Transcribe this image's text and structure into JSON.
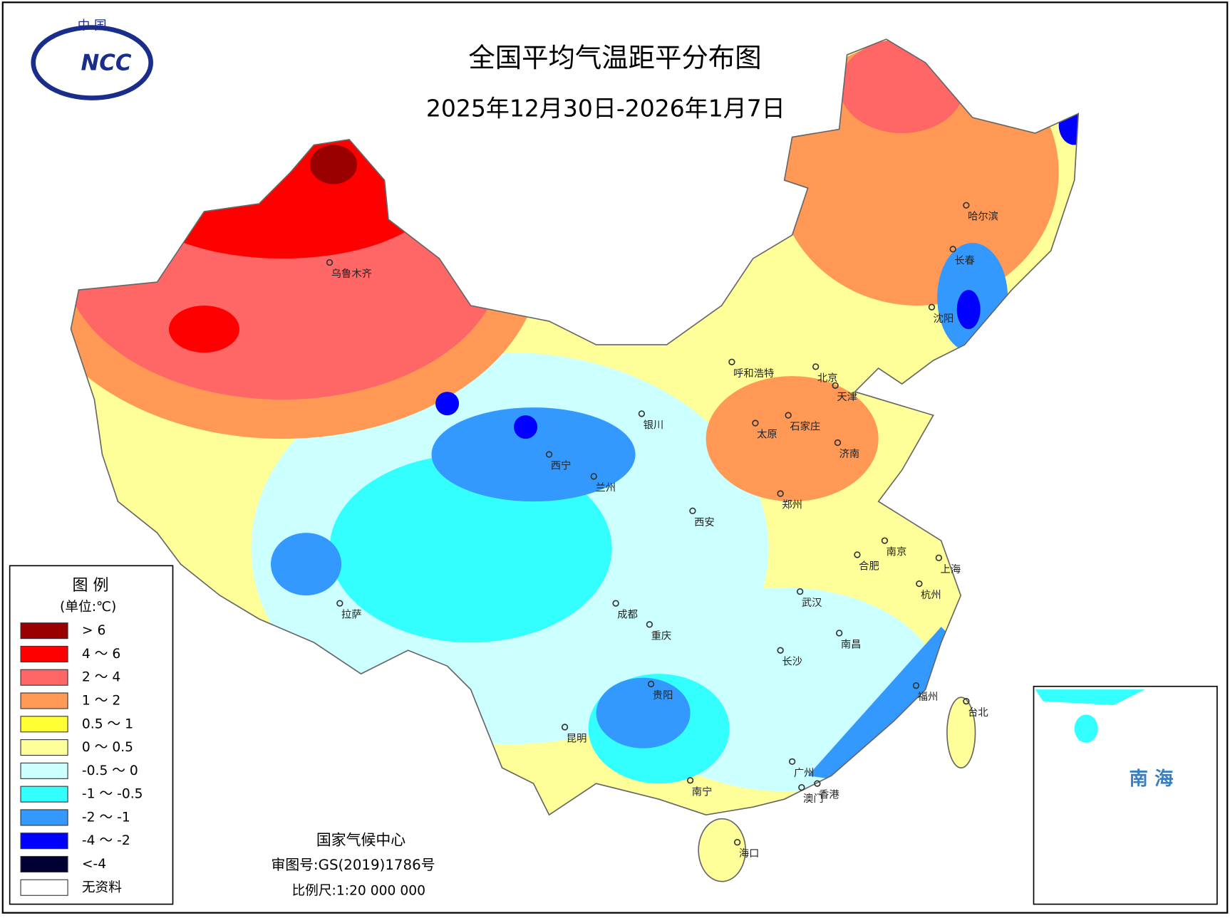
{
  "header": {
    "logo_top": "中 国",
    "logo_text": "NCC",
    "title": "全国平均气温距平分布图",
    "subtitle": "2025年12月30日-2026年1月7日"
  },
  "legend": {
    "title": "图 例",
    "unit": "(单位:℃)",
    "items": [
      {
        "label": "> 6",
        "color": "#9b0000"
      },
      {
        "label": "4 ～ 6",
        "color": "#ff0000"
      },
      {
        "label": "2 ～ 4",
        "color": "#ff6666"
      },
      {
        "label": "1 ～ 2",
        "color": "#ff9955"
      },
      {
        "label": "0.5 ～ 1",
        "color": "#ffff33"
      },
      {
        "label": "0 ～ 0.5",
        "color": "#ffff99"
      },
      {
        "label": "-0.5 ～ 0",
        "color": "#ccffff"
      },
      {
        "label": "-1 ～ -0.5",
        "color": "#33ffff"
      },
      {
        "label": "-2 ～ -1",
        "color": "#3399ff"
      },
      {
        "label": "-4 ～ -2",
        "color": "#0000ff"
      },
      {
        "label": "<-4",
        "color": "#000033"
      },
      {
        "label": "无资料",
        "color": "#ffffff"
      }
    ]
  },
  "cities": [
    "乌鲁木齐",
    "拉萨",
    "西宁",
    "兰州",
    "银川",
    "呼和浩特",
    "北京",
    "天津",
    "石家庄",
    "太原",
    "济南",
    "郑州",
    "西安",
    "成都",
    "重庆",
    "武汉",
    "合肥",
    "南京",
    "上海",
    "杭州",
    "南昌",
    "长沙",
    "福州",
    "台北",
    "贵阳",
    "昆明",
    "广州",
    "香港",
    "澳门",
    "南宁",
    "海口",
    "哈尔滨",
    "长春",
    "沈阳"
  ],
  "footer": {
    "agency": "国家气候中心",
    "approval": "审图号:GS(2019)1786号",
    "scale": "比例尺:1:20 000 000"
  },
  "inset": {
    "label": "南 海"
  }
}
